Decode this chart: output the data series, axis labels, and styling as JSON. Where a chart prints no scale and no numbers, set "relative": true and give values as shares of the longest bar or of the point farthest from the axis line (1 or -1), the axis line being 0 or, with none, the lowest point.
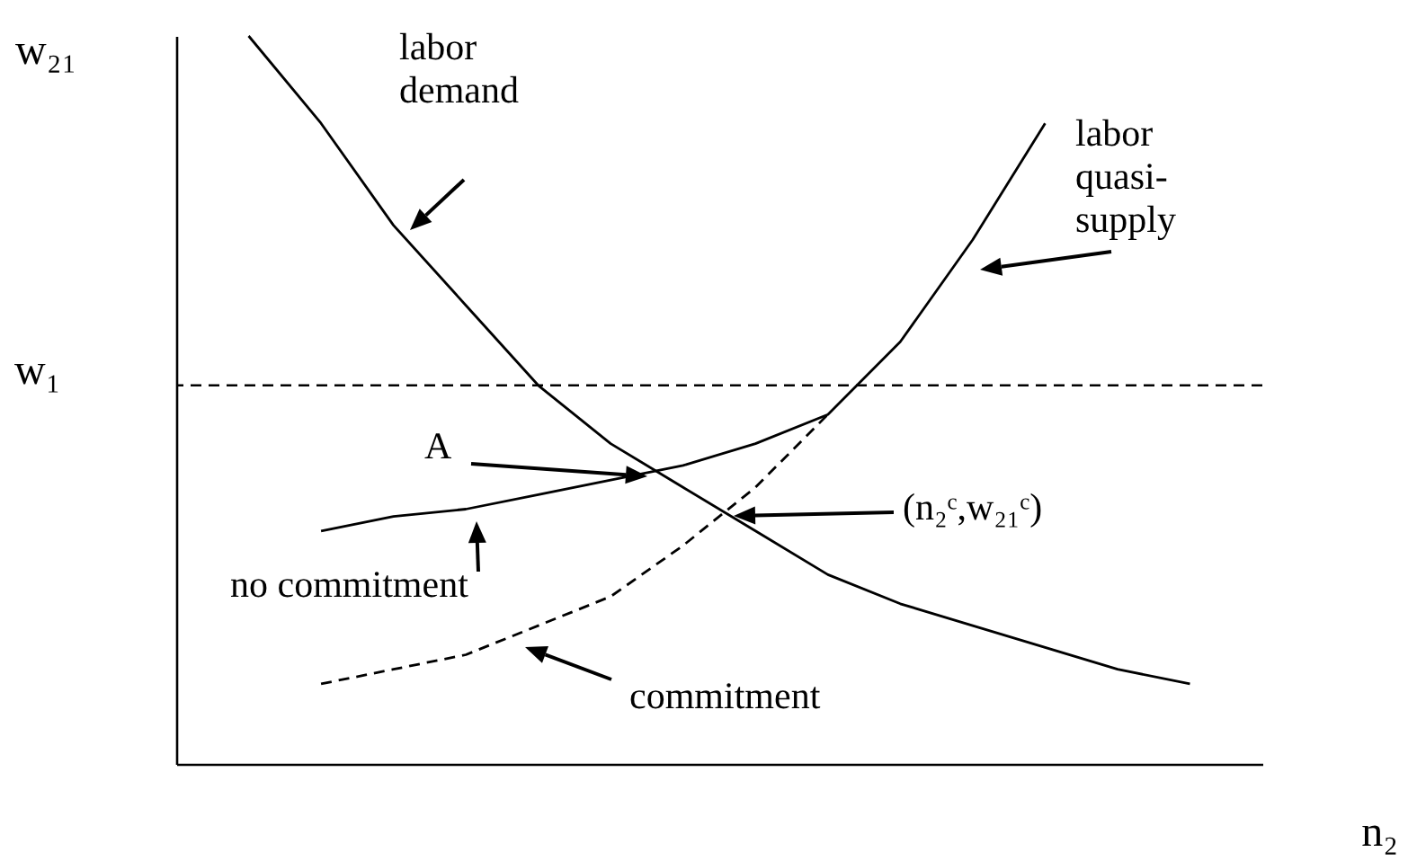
{
  "chart_data": {
    "type": "line",
    "relative": true,
    "xlabel": "n₂",
    "ylabel": "w₂₁",
    "categories": [
      null,
      null,
      null,
      null,
      null,
      null,
      null,
      null,
      null,
      null,
      null,
      null,
      null,
      null
    ],
    "series": [
      {
        "color": "#000000",
        "line_style": "solid",
        "values": [
          1.0,
          0.88,
          0.74,
          0.63,
          0.52,
          0.44,
          0.38,
          0.32,
          0.26,
          0.22,
          0.19,
          0.16,
          0.13,
          0.11
        ]
      },
      {
        "color": "#000000",
        "line_style": "solid",
        "values": [
          null,
          0.32,
          0.34,
          0.35,
          0.37,
          0.39,
          0.41,
          0.44,
          0.48,
          0.58,
          0.72,
          0.88,
          null,
          null
        ]
      },
      {
        "color": "#000000",
        "line_style": "dashed",
        "values": [
          null,
          0.11,
          0.13,
          0.15,
          0.19,
          0.23,
          0.3,
          0.38,
          0.48,
          null,
          null,
          null,
          null,
          null
        ]
      }
    ],
    "ref_lines": [
      {
        "axis": "y",
        "value": 0.52,
        "label": "w₁",
        "color": "#000000",
        "line_style": "dashed"
      }
    ],
    "annotations": [
      "labor demand",
      "labor quasi-supply",
      "A",
      "(n₂ᶜ,w₂₁ᶜ)",
      "no commitment",
      "commitment"
    ],
    "marker": "none",
    "tick_labels": false
  }
}
